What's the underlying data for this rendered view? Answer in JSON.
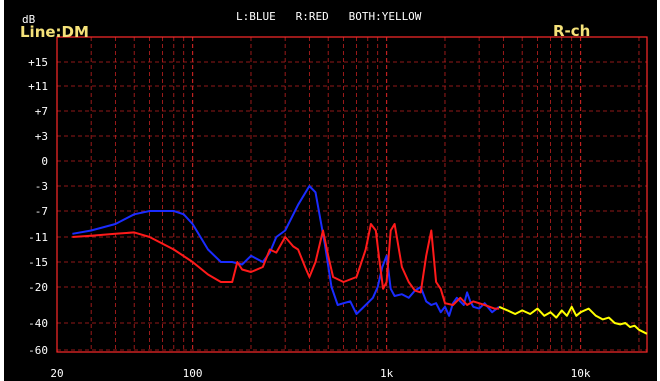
{
  "header": {
    "unit": "dB",
    "mode": "Line:DM",
    "channel": "R-ch",
    "legend": "L:BLUE   R:RED   BOTH:YELLOW"
  },
  "colors": {
    "background": "#000000",
    "frame": "#ff2a2a",
    "grid": "#c02020",
    "left": "#1a2cff",
    "right": "#ff1a1a",
    "both": "#ffff00",
    "mode_text": "#f5e27a",
    "label_text": "#ffffff"
  },
  "chart_data": {
    "type": "line",
    "title": "",
    "xlabel": "",
    "ylabel": "dB",
    "x_scale": "log",
    "xlim": [
      20,
      22000
    ],
    "x_ticks": [
      {
        "value": 20,
        "label": "20"
      },
      {
        "value": 100,
        "label": "100"
      },
      {
        "value": 1000,
        "label": "1k"
      },
      {
        "value": 10000,
        "label": "10k"
      }
    ],
    "y_ticks": [
      "+15",
      "+11",
      "+7",
      "+3",
      "0",
      "-3",
      "-7",
      "-11",
      "-15",
      "-20",
      "-40",
      "-60"
    ],
    "grid": true,
    "legend": "top",
    "series": [
      {
        "name": "L",
        "color": "blue",
        "points": [
          [
            24,
            -10.5
          ],
          [
            30,
            -10
          ],
          [
            40,
            -9
          ],
          [
            50,
            -7.5
          ],
          [
            60,
            -7
          ],
          [
            80,
            -7
          ],
          [
            90,
            -7.5
          ],
          [
            100,
            -9
          ],
          [
            120,
            -13
          ],
          [
            140,
            -15
          ],
          [
            160,
            -15
          ],
          [
            180,
            -15.5
          ],
          [
            200,
            -14
          ],
          [
            230,
            -15
          ],
          [
            250,
            -13.5
          ],
          [
            270,
            -11
          ],
          [
            300,
            -10
          ],
          [
            350,
            -6
          ],
          [
            400,
            -3
          ],
          [
            430,
            -4
          ],
          [
            480,
            -12
          ],
          [
            520,
            -20
          ],
          [
            560,
            -30
          ],
          [
            600,
            -29
          ],
          [
            650,
            -28
          ],
          [
            700,
            -35
          ],
          [
            780,
            -30
          ],
          [
            850,
            -26
          ],
          [
            900,
            -20
          ],
          [
            950,
            -16
          ],
          [
            1000,
            -14
          ],
          [
            1050,
            -21
          ],
          [
            1100,
            -25
          ],
          [
            1200,
            -24
          ],
          [
            1300,
            -26
          ],
          [
            1400,
            -22
          ],
          [
            1500,
            -20
          ],
          [
            1600,
            -28
          ],
          [
            1700,
            -30
          ],
          [
            1800,
            -29
          ],
          [
            1900,
            -34
          ],
          [
            2000,
            -31
          ],
          [
            2100,
            -36
          ],
          [
            2200,
            -29
          ],
          [
            2300,
            -26
          ],
          [
            2400,
            -28
          ],
          [
            2500,
            -30
          ],
          [
            2600,
            -23
          ],
          [
            2700,
            -28
          ],
          [
            2800,
            -31
          ],
          [
            3000,
            -32
          ],
          [
            3200,
            -29
          ],
          [
            3500,
            -34
          ],
          [
            3800,
            -31
          ]
        ]
      },
      {
        "name": "R",
        "color": "red",
        "points": [
          [
            24,
            -11
          ],
          [
            30,
            -10.8
          ],
          [
            40,
            -10.5
          ],
          [
            50,
            -10.3
          ],
          [
            60,
            -11
          ],
          [
            80,
            -13
          ],
          [
            100,
            -15
          ],
          [
            120,
            -17.5
          ],
          [
            140,
            -19
          ],
          [
            160,
            -19
          ],
          [
            170,
            -15
          ],
          [
            180,
            -16.5
          ],
          [
            200,
            -17
          ],
          [
            230,
            -16
          ],
          [
            250,
            -13
          ],
          [
            270,
            -13.5
          ],
          [
            300,
            -11
          ],
          [
            330,
            -12.5
          ],
          [
            350,
            -13
          ],
          [
            380,
            -16
          ],
          [
            400,
            -18
          ],
          [
            430,
            -15
          ],
          [
            470,
            -10
          ],
          [
            500,
            -14
          ],
          [
            530,
            -18
          ],
          [
            600,
            -19
          ],
          [
            700,
            -18
          ],
          [
            780,
            -13
          ],
          [
            830,
            -9
          ],
          [
            880,
            -10
          ],
          [
            920,
            -15
          ],
          [
            960,
            -21
          ],
          [
            1000,
            -19
          ],
          [
            1050,
            -10
          ],
          [
            1100,
            -9
          ],
          [
            1200,
            -16
          ],
          [
            1300,
            -19
          ],
          [
            1400,
            -22
          ],
          [
            1500,
            -23
          ],
          [
            1600,
            -14
          ],
          [
            1700,
            -10
          ],
          [
            1800,
            -19
          ],
          [
            1900,
            -21
          ],
          [
            2000,
            -29
          ],
          [
            2200,
            -30
          ],
          [
            2400,
            -26
          ],
          [
            2600,
            -30
          ],
          [
            2800,
            -28
          ],
          [
            3000,
            -29
          ],
          [
            3200,
            -30
          ],
          [
            3600,
            -32
          ],
          [
            3800,
            -32
          ]
        ]
      },
      {
        "name": "BOTH",
        "color": "yellow",
        "points": [
          [
            3800,
            -31
          ],
          [
            4200,
            -33
          ],
          [
            4600,
            -35
          ],
          [
            5000,
            -33
          ],
          [
            5500,
            -35
          ],
          [
            6000,
            -32
          ],
          [
            6500,
            -36
          ],
          [
            7000,
            -34
          ],
          [
            7500,
            -37
          ],
          [
            8000,
            -33
          ],
          [
            8500,
            -36
          ],
          [
            9000,
            -31
          ],
          [
            9500,
            -36
          ],
          [
            10000,
            -34
          ],
          [
            11000,
            -32
          ],
          [
            12000,
            -36
          ],
          [
            13000,
            -38
          ],
          [
            14000,
            -37
          ],
          [
            15000,
            -40
          ],
          [
            16000,
            -41
          ],
          [
            17000,
            -40
          ],
          [
            18000,
            -43
          ],
          [
            19000,
            -42
          ],
          [
            20000,
            -45
          ],
          [
            22000,
            -48
          ]
        ]
      }
    ]
  }
}
